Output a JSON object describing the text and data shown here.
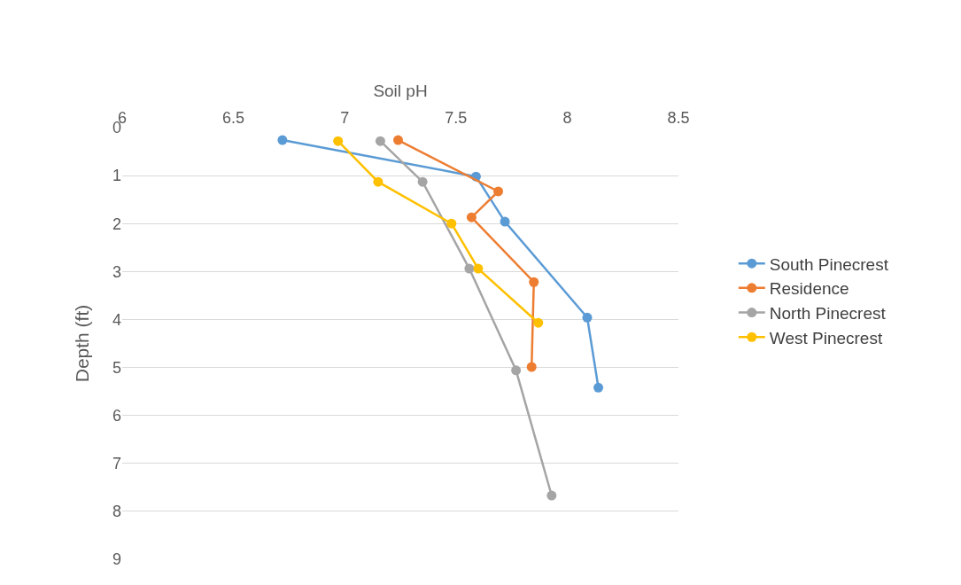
{
  "chart_data": {
    "type": "line",
    "xlabel": "Soil pH",
    "ylabel": "Depth (ft)",
    "xlim": [
      6,
      8.5
    ],
    "xticks": [
      6,
      6.5,
      7,
      7.5,
      8,
      8.5
    ],
    "ylim": [
      9,
      0
    ],
    "yticks": [
      0,
      1,
      2,
      3,
      4,
      5,
      6,
      7,
      8,
      9
    ],
    "grid": "y",
    "legend": "right",
    "marker": "circle",
    "line_style": "solid",
    "series": [
      {
        "name": "South Pinecrest",
        "color": "#5b9bd5",
        "x": [
          6.72,
          7.59,
          7.72,
          8.09,
          8.14
        ],
        "values": [
          0.26,
          1.02,
          1.96,
          3.96,
          5.42
        ]
      },
      {
        "name": "Residence",
        "color": "#ed7d31",
        "x": [
          7.24,
          7.69,
          7.57,
          7.85,
          7.84
        ],
        "values": [
          0.26,
          1.33,
          1.87,
          3.22,
          4.99
        ]
      },
      {
        "name": "North Pinecrest",
        "color": "#a5a5a5",
        "x": [
          7.16,
          7.35,
          7.56,
          7.77,
          7.93
        ],
        "values": [
          0.28,
          1.13,
          2.94,
          5.06,
          7.67
        ]
      },
      {
        "name": "West Pinecrest",
        "color": "#ffc000",
        "x": [
          6.97,
          7.15,
          7.48,
          7.6,
          7.87
        ],
        "values": [
          0.28,
          1.13,
          2.0,
          2.94,
          4.07
        ]
      }
    ]
  }
}
